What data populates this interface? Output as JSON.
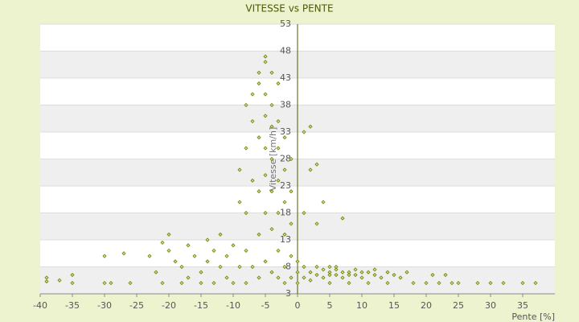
{
  "chart_data": {
    "type": "scatter",
    "title": "VITESSE vs PENTE",
    "x_label": "Pente [%]",
    "y_label": "Vitesse [km/h]",
    "xlim": [
      -40,
      40
    ],
    "xticks": [
      -40,
      -35,
      -30,
      -25,
      -20,
      -15,
      -10,
      -5,
      0,
      5,
      10,
      15,
      20,
      25,
      30,
      35
    ],
    "ylim": [
      3,
      53
    ],
    "yticks": [
      3,
      8,
      13,
      18,
      23,
      28,
      33,
      38,
      43,
      48,
      53
    ],
    "color": "#6b7d00",
    "grid": true,
    "x": [
      -39,
      -37,
      -39,
      -35,
      -35,
      -30,
      -29,
      -30,
      -27,
      -26,
      -23,
      -22,
      -21,
      -21,
      -20,
      -20,
      -19,
      -18,
      -18,
      -17,
      -17,
      -16,
      -15,
      -15,
      -14,
      -14,
      -13,
      -13,
      -12,
      -12,
      -11,
      -11,
      -10,
      -10,
      -9,
      -9,
      -9,
      -8,
      -8,
      -8,
      -8,
      -8,
      -7,
      -7,
      -7,
      -7,
      -6,
      -6,
      -6,
      -6,
      -6,
      -6,
      -5,
      -5,
      -5,
      -5,
      -5,
      -5,
      -5,
      -5,
      -4,
      -4,
      -4,
      -4,
      -4,
      -4,
      -4,
      -3,
      -3,
      -3,
      -3,
      -3,
      -3,
      -3,
      -2,
      -2,
      -2,
      -2,
      -2,
      -2,
      -1,
      -1,
      -1,
      -1,
      -1,
      0,
      0,
      0,
      1,
      1,
      1,
      1,
      2,
      2,
      2,
      2,
      3,
      3,
      3,
      3,
      4,
      4,
      4,
      5,
      5,
      5,
      5,
      6,
      6,
      6,
      7,
      7,
      7,
      8,
      8,
      8,
      9,
      9,
      10,
      10,
      11,
      11,
      12,
      12,
      13,
      14,
      14,
      15,
      16,
      17,
      18,
      20,
      21,
      22,
      23,
      24,
      25,
      28,
      30,
      32,
      35,
      37
    ],
    "y": [
      5.3,
      5.5,
      6,
      5,
      6.5,
      5,
      5,
      10,
      10.5,
      5,
      10,
      7,
      5,
      12.5,
      11,
      14,
      9,
      5,
      8,
      12,
      6,
      10,
      5,
      7,
      13,
      9,
      5,
      11,
      8,
      14,
      6,
      10,
      5,
      12,
      8,
      20,
      26,
      5,
      11,
      18,
      30,
      38,
      40,
      35,
      24,
      8,
      44,
      42,
      32,
      22,
      14,
      6,
      47,
      46,
      40,
      36,
      30,
      25,
      18,
      9,
      44,
      38,
      34,
      28,
      22,
      15,
      7,
      42,
      35,
      30,
      24,
      18,
      11,
      6,
      32,
      26,
      20,
      14,
      8,
      5,
      28,
      22,
      16,
      10,
      6,
      5,
      7,
      9,
      33,
      18,
      8,
      6,
      34,
      26,
      7,
      5.5,
      27,
      16,
      8,
      6.5,
      20,
      7.5,
      6,
      8,
      7,
      6.5,
      5,
      7.5,
      6.5,
      8,
      7,
      6,
      17,
      7,
      6.5,
      5,
      7.5,
      6.5,
      7,
      6,
      7,
      5,
      6.5,
      7.5,
      6,
      7,
      5,
      6.5,
      6,
      7,
      5,
      5,
      6.5,
      5,
      6.5,
      5,
      5,
      5,
      5,
      5,
      5,
      5
    ]
  }
}
